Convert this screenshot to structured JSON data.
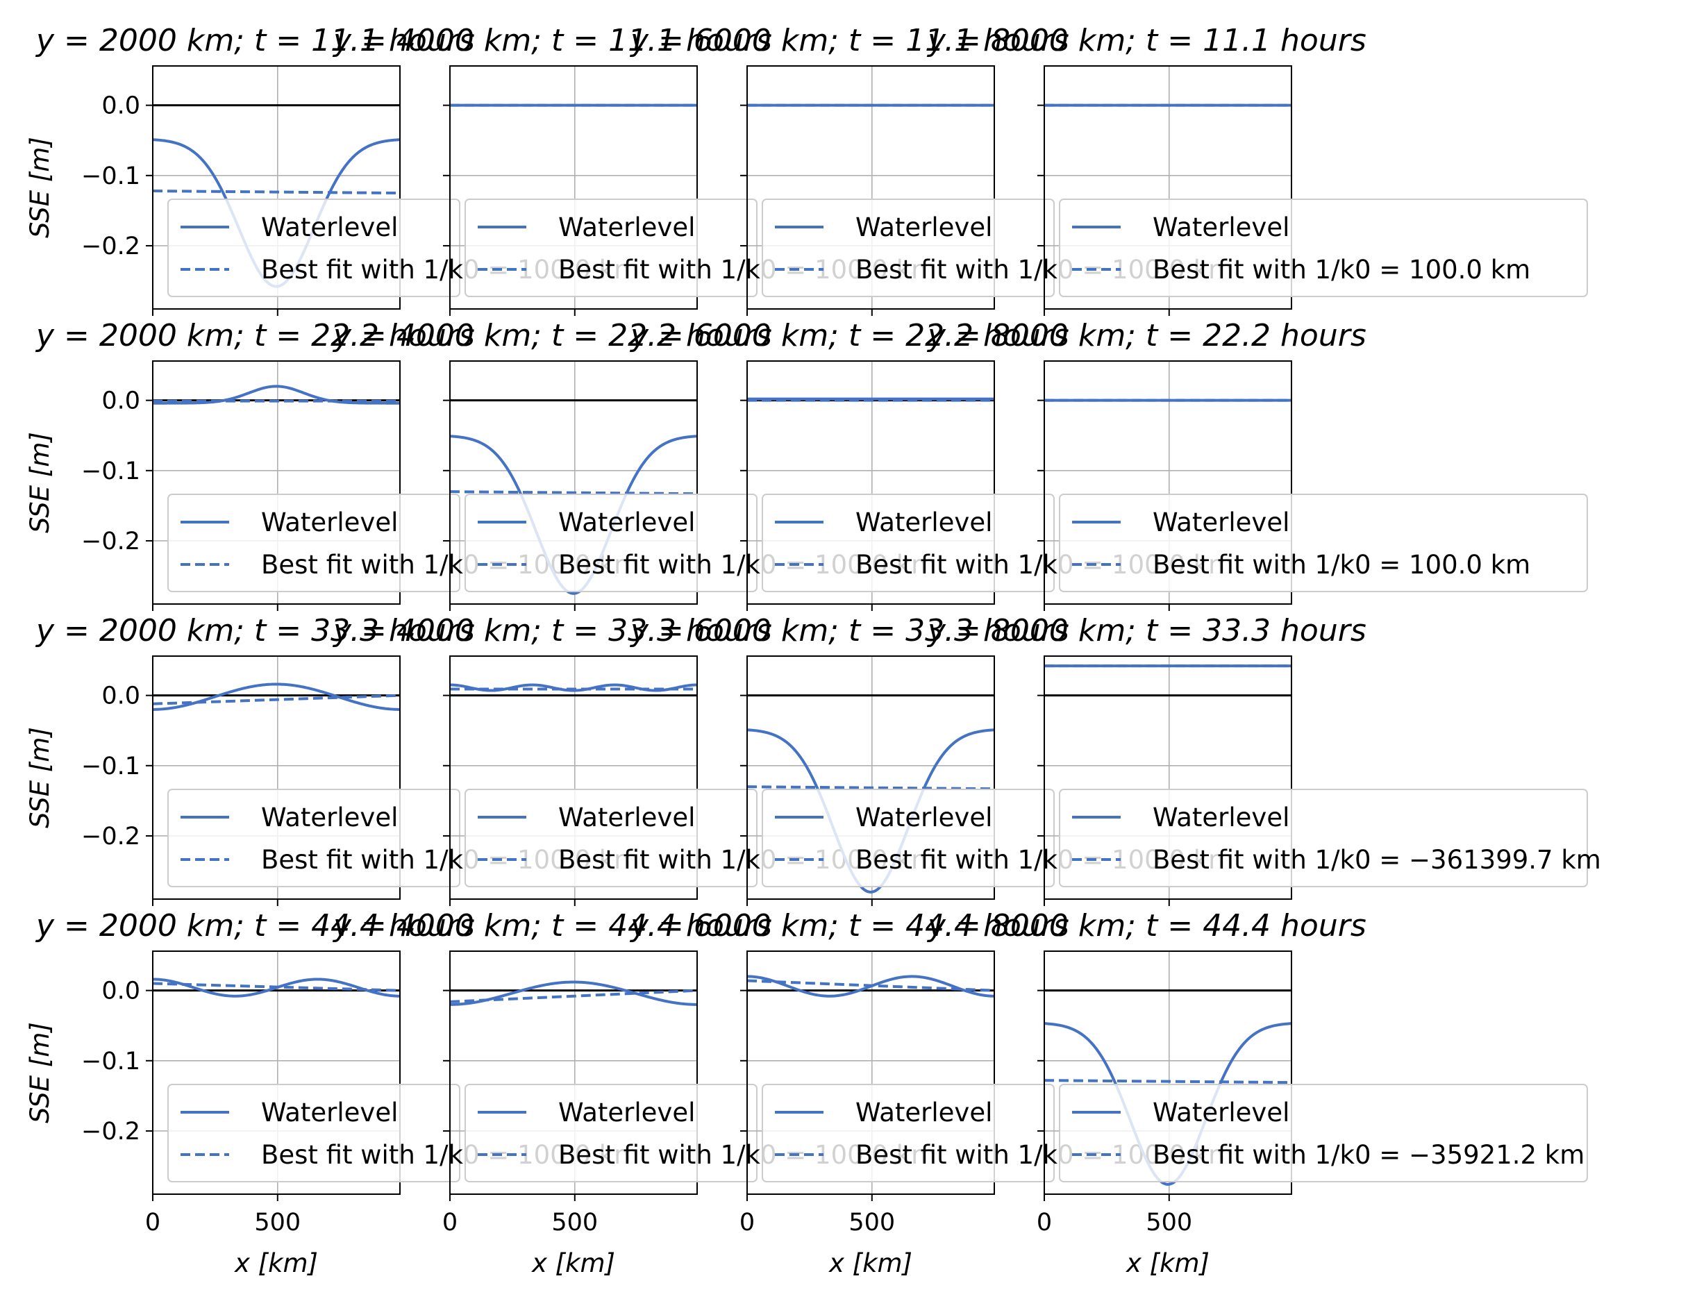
{
  "chart_data": {
    "type": "line",
    "layout": {
      "rows": 4,
      "cols": 4,
      "sharex": true,
      "sharey": true
    },
    "xlabel": "x [km]",
    "ylabel": "SSE [m]",
    "xlim": [
      0,
      990
    ],
    "ylim": [
      -0.29,
      0.056
    ],
    "xticks": [
      0,
      500
    ],
    "xtick_labels": [
      "0",
      "500"
    ],
    "yticks": [
      0.0,
      -0.1,
      -0.2
    ],
    "ytick_labels": [
      "0.0",
      "−0.1",
      "−0.2"
    ],
    "grid": true,
    "hline_y": 0.0,
    "colors": {
      "series": "#4472c4",
      "zero_line": "#000000",
      "grid": "#b0b0b0"
    },
    "legend_placement": "lower-left",
    "legend_entries": [
      "Waterlevel",
      "Best fit with 1/k0 = ..."
    ],
    "panels": [
      [
        {
          "title": "y = 2000 km; t = 11.1 hours",
          "best_fit_label": "Best fit with 1/k0 = 100.0 km",
          "wl": {
            "type": "bump",
            "base": -0.048,
            "amp": -0.21,
            "sigma": 150
          },
          "fit": [
            -0.122,
            -0.125
          ]
        },
        {
          "title": "y = 4000 km; t = 11.1 hours",
          "best_fit_label": "Best fit with 1/k0 = 100.0 km",
          "wl": {
            "type": "flat",
            "value": 0.0
          },
          "fit": [
            0.0,
            0.0
          ]
        },
        {
          "title": "y = 6000 km; t = 11.1 hours",
          "best_fit_label": "Best fit with 1/k0 = 100.0 km",
          "wl": {
            "type": "flat",
            "value": 0.0
          },
          "fit": [
            0.0,
            0.0
          ]
        },
        {
          "title": "y = 8000 km; t = 11.1 hours",
          "best_fit_label": "Best fit with 1/k0 = 100.0 km",
          "wl": {
            "type": "flat",
            "value": 0.0
          },
          "fit": [
            0.0,
            0.0
          ]
        }
      ],
      [
        {
          "title": "y = 2000 km; t = 22.2 hours",
          "best_fit_label": "Best fit with 1/k0 = 100.0 km",
          "wl": {
            "type": "bump",
            "base": -0.004,
            "amp": 0.024,
            "sigma": 110
          },
          "fit": [
            -0.001,
            -0.001
          ]
        },
        {
          "title": "y = 4000 km; t = 22.2 hours",
          "best_fit_label": "Best fit with 1/k0 = 100.0 km",
          "wl": {
            "type": "bump",
            "base": -0.05,
            "amp": -0.225,
            "sigma": 150
          },
          "fit": [
            -0.13,
            -0.133
          ]
        },
        {
          "title": "y = 6000 km; t = 22.2 hours",
          "best_fit_label": "Best fit with 1/k0 = 100.0 km",
          "wl": {
            "type": "flat",
            "value": 0.002
          },
          "fit": [
            0.0,
            0.0
          ]
        },
        {
          "title": "y = 8000 km; t = 22.2 hours",
          "best_fit_label": "Best fit with 1/k0 = 100.0 km",
          "wl": {
            "type": "flat",
            "value": 0.0
          },
          "fit": [
            0.0,
            0.0
          ]
        }
      ],
      [
        {
          "title": "y = 2000 km; t = 33.3 hours",
          "best_fit_label": "Best fit with 1/k0 = 100.0 km",
          "wl": {
            "type": "wave",
            "base": -0.002,
            "amp": -0.018,
            "period": 990
          },
          "fit": [
            -0.012,
            0.0
          ]
        },
        {
          "title": "y = 4000 km; t = 33.3 hours",
          "best_fit_label": "Best fit with 1/k0 = 100.0 km",
          "wl": {
            "type": "wave",
            "base": 0.011,
            "amp": 0.004,
            "period": 330
          },
          "fit": [
            0.009,
            0.009
          ]
        },
        {
          "title": "y = 6000 km; t = 33.3 hours",
          "best_fit_label": "Best fit with 1/k0 = 100.0 km",
          "wl": {
            "type": "bump",
            "base": -0.048,
            "amp": -0.232,
            "sigma": 150
          },
          "fit": [
            -0.13,
            -0.133
          ]
        },
        {
          "title": "y = 8000 km; t = 33.3 hours",
          "best_fit_label": "Best fit with 1/k0 = −361399.7 km",
          "wl": {
            "type": "flat",
            "value": 0.042
          },
          "fit": [
            0.042,
            0.042
          ]
        }
      ],
      [
        {
          "title": "y = 2000 km; t = 44.4 hours",
          "best_fit_label": "Best fit with 1/k0 = 100.0 km",
          "wl": {
            "type": "wave",
            "base": 0.004,
            "amp": 0.012,
            "period": 660
          },
          "fit": [
            0.01,
            0.0
          ]
        },
        {
          "title": "y = 4000 km; t = 44.4 hours",
          "best_fit_label": "Best fit with 1/k0 = 100.0 km",
          "wl": {
            "type": "wave",
            "base": -0.004,
            "amp": -0.016,
            "period": 990
          },
          "fit": [
            -0.016,
            0.0
          ]
        },
        {
          "title": "y = 6000 km; t = 44.4 hours",
          "best_fit_label": "Best fit with 1/k0 = 100.0 km",
          "wl": {
            "type": "wave",
            "base": 0.006,
            "amp": 0.014,
            "period": 660
          },
          "fit": [
            0.014,
            0.0
          ]
        },
        {
          "title": "y = 8000 km; t = 44.4 hours",
          "best_fit_label": "Best fit with 1/k0 = −35921.2 km",
          "wl": {
            "type": "bump",
            "base": -0.046,
            "amp": -0.23,
            "sigma": 150
          },
          "fit": [
            -0.128,
            -0.131
          ]
        }
      ]
    ]
  }
}
